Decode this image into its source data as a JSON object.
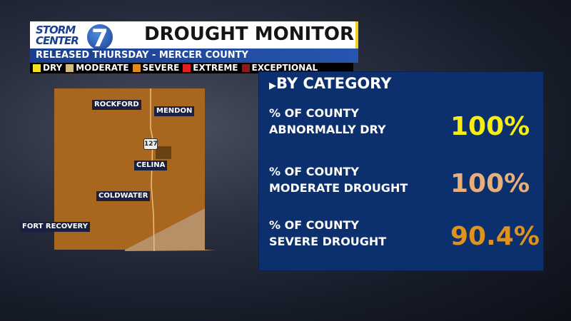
{
  "header": {
    "logo_text": [
      "STORM",
      "CENTER",
      "7"
    ],
    "title": "DROUGHT MONITOR",
    "subtitle": "RELEASED THURSDAY - MERCER COUNTY"
  },
  "legend": [
    {
      "label": "DRY",
      "color": "#f0e020"
    },
    {
      "label": "MODERATE",
      "color": "#d4bc80"
    },
    {
      "label": "SEVERE",
      "color": "#e08a20"
    },
    {
      "label": "EXTREME",
      "color": "#e02020"
    },
    {
      "label": "EXCEPTIONAL",
      "color": "#901818"
    }
  ],
  "map": {
    "cities": [
      "ROCKFORD",
      "MENDON",
      "CELINA",
      "COLDWATER",
      "FORT RECOVERY"
    ],
    "route_shield": "127",
    "colors": {
      "severe": "#a8661e",
      "moderate": "#b89068"
    }
  },
  "panel": {
    "title": "BY CATEGORY",
    "rows": [
      {
        "line1": "% OF COUNTY",
        "line2": "ABNORMALLY DRY",
        "value": "100%",
        "color": "#f5ee10"
      },
      {
        "line1": "% OF COUNTY",
        "line2": "MODERATE DROUGHT",
        "value": "100%",
        "color": "#e8b078"
      },
      {
        "line1": "% OF COUNTY",
        "line2": "SEVERE DROUGHT",
        "value": "90.4%",
        "color": "#e0921e"
      }
    ]
  }
}
